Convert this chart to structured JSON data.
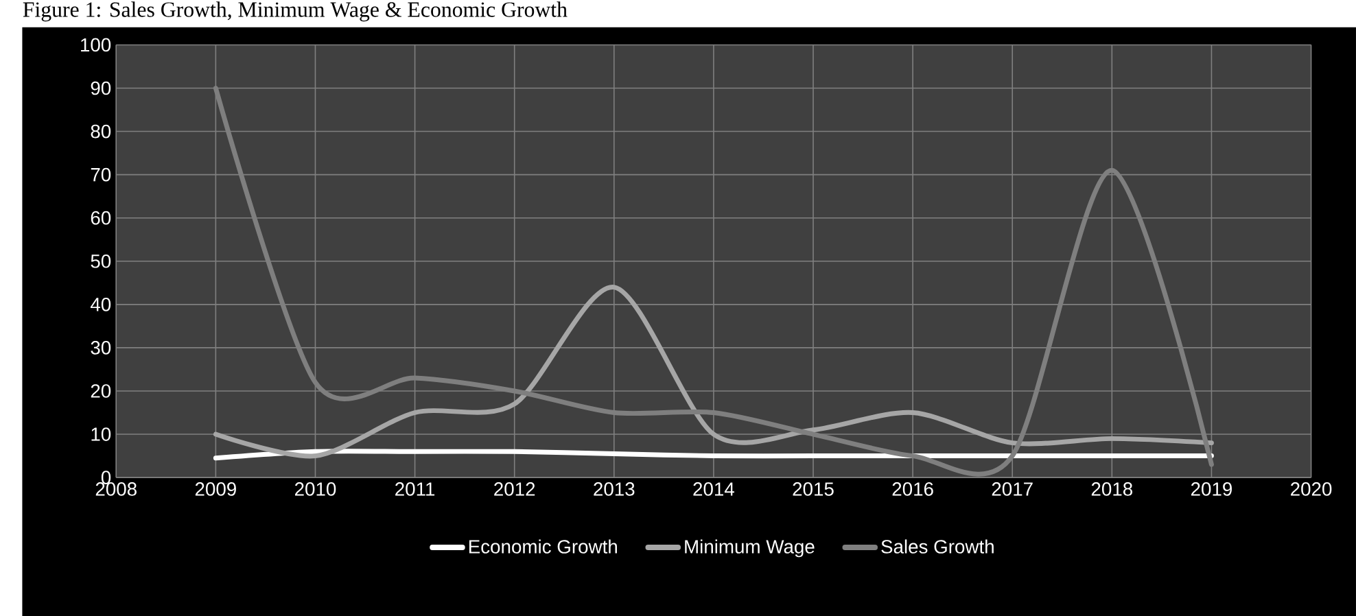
{
  "chart_data": {
    "type": "line",
    "title": "Figure 1: Sales Growth, Minimum Wage & Economic Growth",
    "x": [
      2009,
      2010,
      2011,
      2012,
      2013,
      2014,
      2015,
      2016,
      2017,
      2018,
      2019
    ],
    "series": [
      {
        "name": "Economic Growth",
        "color": "#ffffff",
        "values": [
          4.5,
          6,
          6,
          6,
          5.5,
          5,
          5,
          5,
          5,
          5,
          5
        ]
      },
      {
        "name": "Minimum Wage",
        "color": "#a6a6a6",
        "values": [
          10,
          5,
          15,
          17,
          44,
          10,
          11,
          15,
          8,
          9,
          8
        ]
      },
      {
        "name": "Sales Growth",
        "color": "#7f7f7f",
        "values": [
          90,
          22,
          23,
          20,
          15,
          15,
          10,
          5,
          5,
          71,
          3
        ]
      }
    ],
    "xlim": [
      2008,
      2020
    ],
    "xticks": [
      2008,
      2009,
      2010,
      2011,
      2012,
      2013,
      2014,
      2015,
      2016,
      2017,
      2018,
      2019,
      2020
    ],
    "ylim": [
      0,
      100
    ],
    "yticks": [
      0,
      10,
      20,
      30,
      40,
      50,
      60,
      70,
      80,
      90,
      100
    ],
    "grid": true,
    "legend": "bottom",
    "marker": "none",
    "line_style": "solid"
  }
}
